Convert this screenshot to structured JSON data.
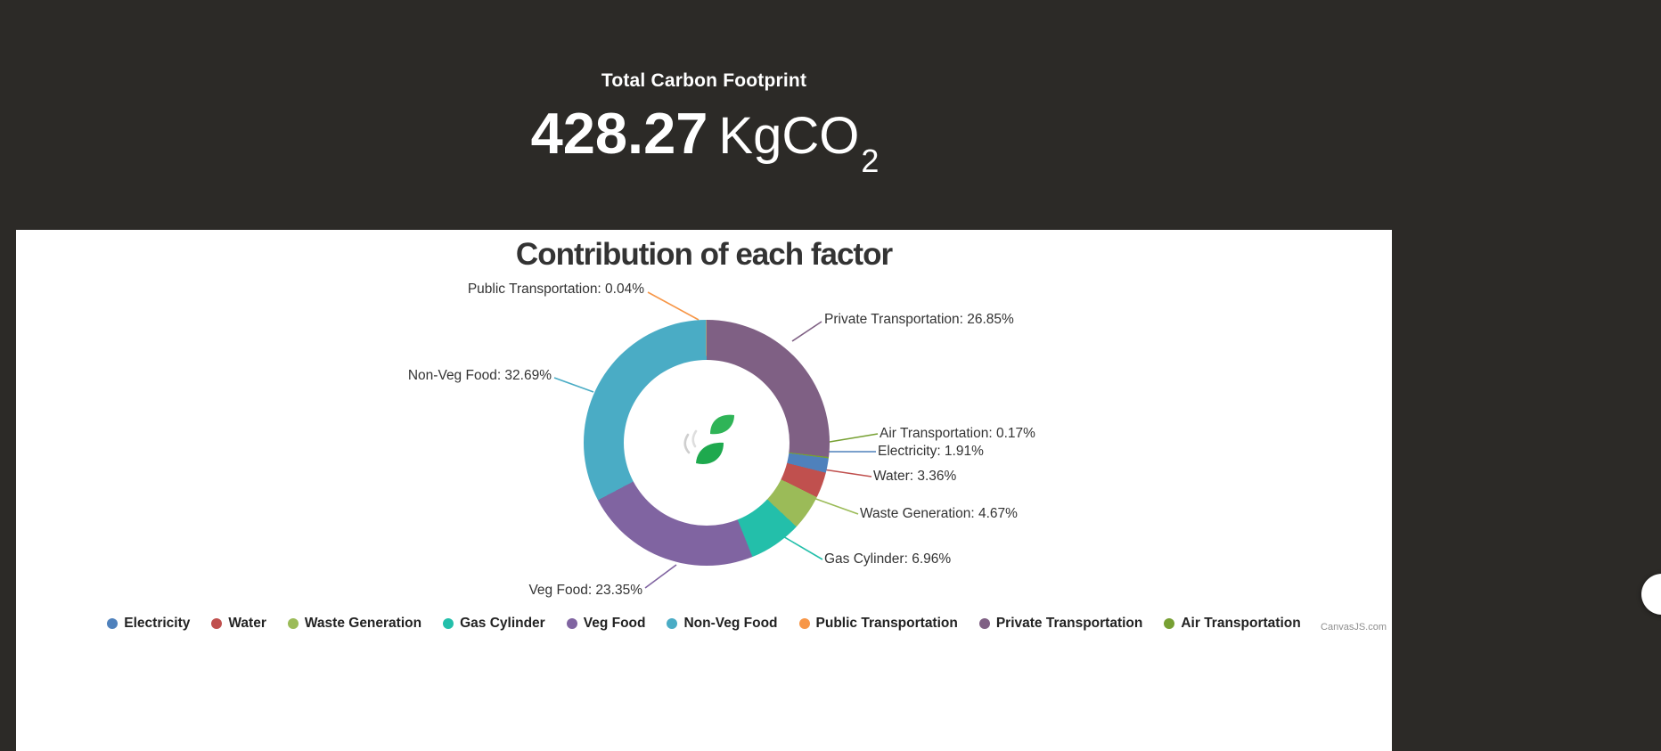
{
  "header": {
    "title": "Total Carbon Footprint",
    "value": "428.27",
    "unit": "KgCO",
    "unit_subscript": "2"
  },
  "chart_data": {
    "type": "pie",
    "subtype": "doughnut",
    "title": "Contribution of each factor",
    "unit": "%",
    "legend_position": "bottom",
    "start_angle_deg": 97.27,
    "series": [
      {
        "name": "Electricity",
        "value": 1.91,
        "color": "#4F81BC"
      },
      {
        "name": "Water",
        "value": 3.36,
        "color": "#C0504E"
      },
      {
        "name": "Waste Generation",
        "value": 4.67,
        "color": "#9BBB58"
      },
      {
        "name": "Gas Cylinder",
        "value": 6.96,
        "color": "#23BFAA"
      },
      {
        "name": "Veg Food",
        "value": 23.35,
        "color": "#8064A1"
      },
      {
        "name": "Non-Veg Food",
        "value": 32.69,
        "color": "#4AACC5"
      },
      {
        "name": "Public Transportation",
        "value": 0.04,
        "color": "#F79647"
      },
      {
        "name": "Private Transportation",
        "value": 26.85,
        "color": "#7F6084"
      },
      {
        "name": "Air Transportation",
        "value": 0.17,
        "color": "#77A033"
      }
    ]
  },
  "watermark": "CanvasJS.com",
  "colors": {
    "background_dark": "#2c2a27",
    "panel": "#ffffff",
    "text_dark": "#333333"
  }
}
